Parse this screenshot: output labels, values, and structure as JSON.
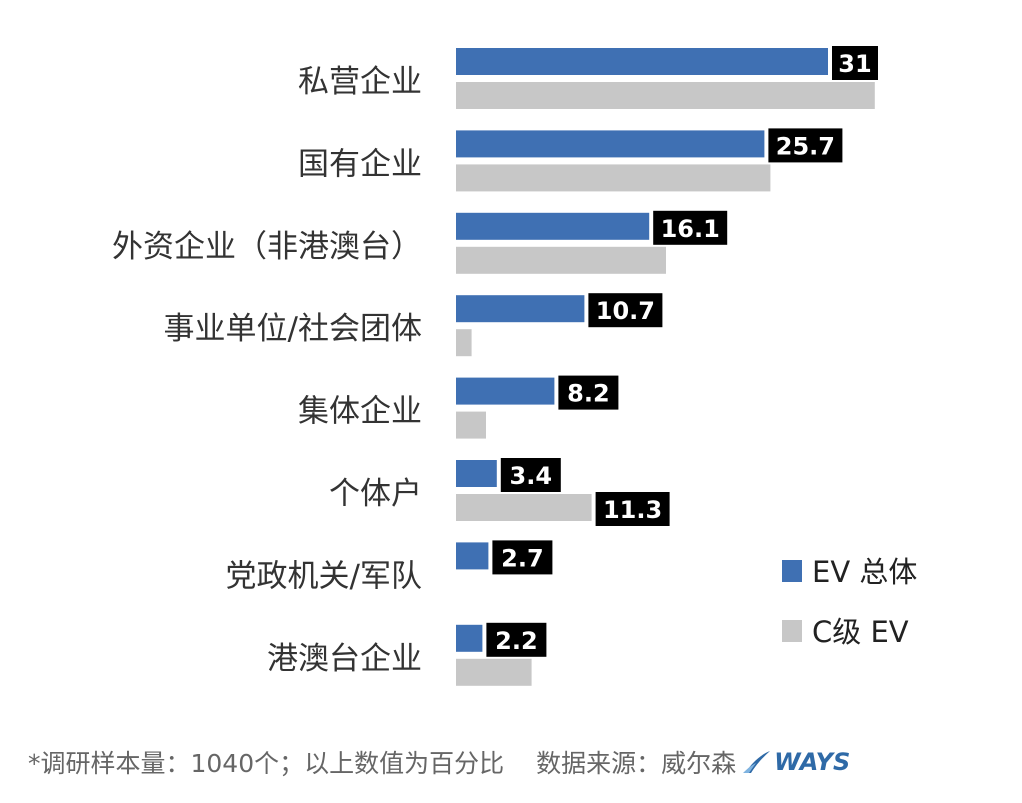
{
  "chart_data": {
    "type": "bar",
    "orientation": "horizontal",
    "categories": [
      "私营企业",
      "国有企业",
      "外资企业（非港澳台）",
      "事业单位/社会团体",
      "集体企业",
      "个体户",
      "党政机关/军队",
      "港澳台企业"
    ],
    "series": [
      {
        "name": "EV 总体",
        "color": "#3f70b3",
        "values": [
          31,
          25.7,
          16.1,
          10.7,
          8.2,
          3.4,
          2.7,
          2.2
        ],
        "labels": [
          "31",
          "25.7",
          "16.1",
          "10.7",
          "8.2",
          "3.4",
          "2.7",
          "2.2"
        ]
      },
      {
        "name": "C级 EV",
        "color": "#c7c7c7",
        "values": [
          34.9,
          26.2,
          17.5,
          1.3,
          2.5,
          11.3,
          null,
          6.3
        ],
        "labels": [
          null,
          null,
          null,
          null,
          null,
          "11.3",
          null,
          null
        ]
      }
    ],
    "grid": false,
    "legend_position": "right"
  },
  "footer": {
    "note": "*调研样本量：1040个；以上数值为百分比",
    "source": "数据来源：威尔森",
    "brand": "WAYS"
  }
}
